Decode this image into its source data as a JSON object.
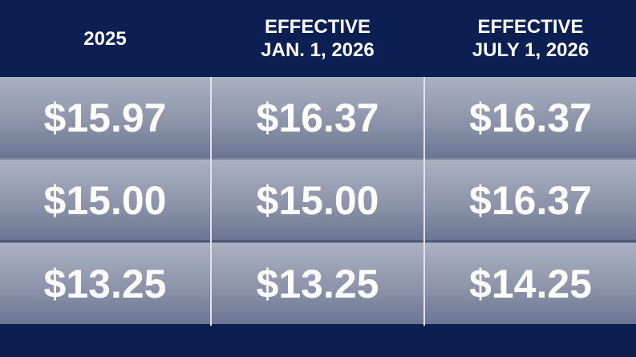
{
  "headers": [
    {
      "line1": "2025",
      "line2": ""
    },
    {
      "line1": "EFFECTIVE",
      "line2": "JAN. 1, 2026"
    },
    {
      "line1": "EFFECTIVE",
      "line2": "JULY 1, 2026"
    }
  ],
  "rows": [
    [
      "$15.97",
      "$16.37",
      "$16.37"
    ],
    [
      "$15.00",
      "$15.00",
      "$16.37"
    ],
    [
      "$13.25",
      "$13.25",
      "$14.25"
    ]
  ],
  "colors": {
    "header_bg": "#0b1f52",
    "cell_top": "#abb1c2",
    "cell_bottom": "#6b7592",
    "text": "#ffffff"
  }
}
